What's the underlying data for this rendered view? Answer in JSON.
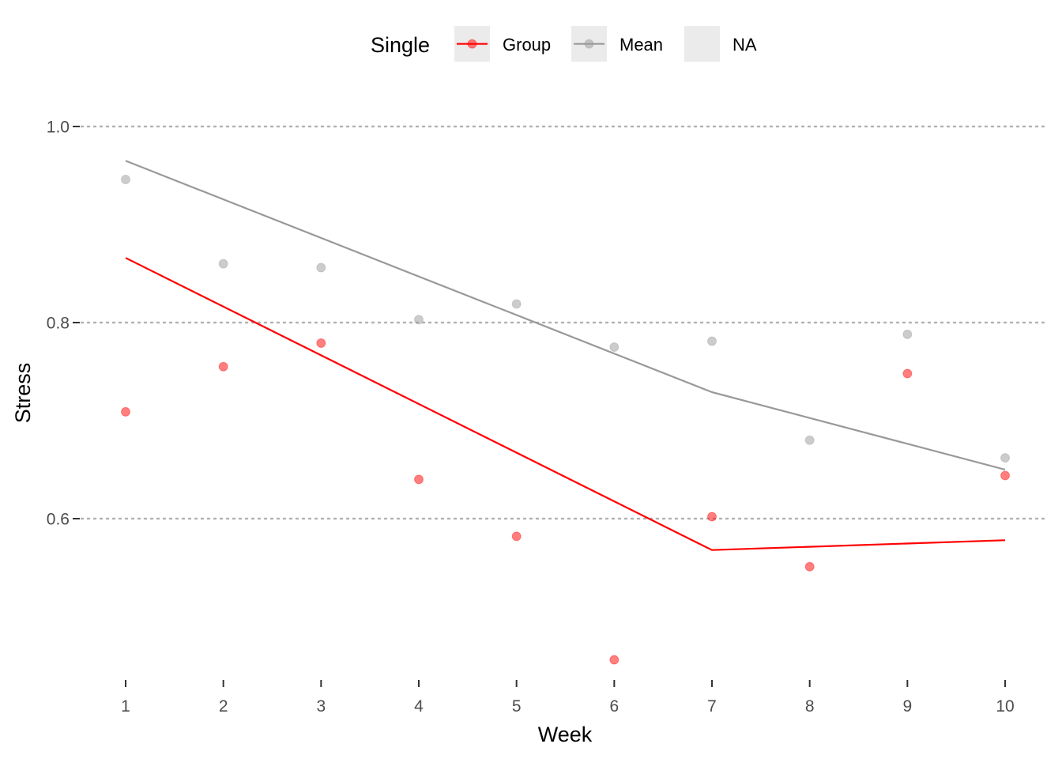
{
  "chart_data": {
    "type": "line",
    "xlabel": "Week",
    "ylabel": "Stress",
    "legend": {
      "title": "Single",
      "position": "top",
      "entries": [
        {
          "label": "Group",
          "color": "#ff0000",
          "key": "point-line"
        },
        {
          "label": "Mean",
          "color": "#999999",
          "key": "point-line"
        },
        {
          "label": "NA",
          "color": "#ebebeb",
          "key": "empty"
        }
      ]
    },
    "x": [
      1,
      2,
      3,
      4,
      5,
      6,
      7,
      8,
      9,
      10
    ],
    "x_ticks": [
      "1",
      "2",
      "3",
      "4",
      "5",
      "6",
      "7",
      "8",
      "9",
      "10"
    ],
    "y_ticks": [
      "0.6",
      "0.8",
      "1.0"
    ],
    "xlim": [
      0.7,
      10.4
    ],
    "ylim": [
      0.44,
      1.05
    ],
    "grid": "horizontal-dotted",
    "series": [
      {
        "name": "Group",
        "color": "#ff0000",
        "points": [
          0.709,
          0.755,
          0.779,
          0.64,
          0.582,
          0.456,
          0.602,
          0.551,
          0.748,
          0.644
        ],
        "line": [
          [
            1,
            0.866
          ],
          [
            7,
            0.568
          ],
          [
            10,
            0.578
          ]
        ]
      },
      {
        "name": "Mean",
        "color": "#999999",
        "points": [
          0.946,
          0.86,
          0.856,
          0.803,
          0.819,
          0.775,
          0.781,
          0.68,
          0.788,
          0.662
        ],
        "line": [
          [
            1,
            0.965
          ],
          [
            7,
            0.729
          ],
          [
            10,
            0.65
          ]
        ]
      }
    ]
  }
}
